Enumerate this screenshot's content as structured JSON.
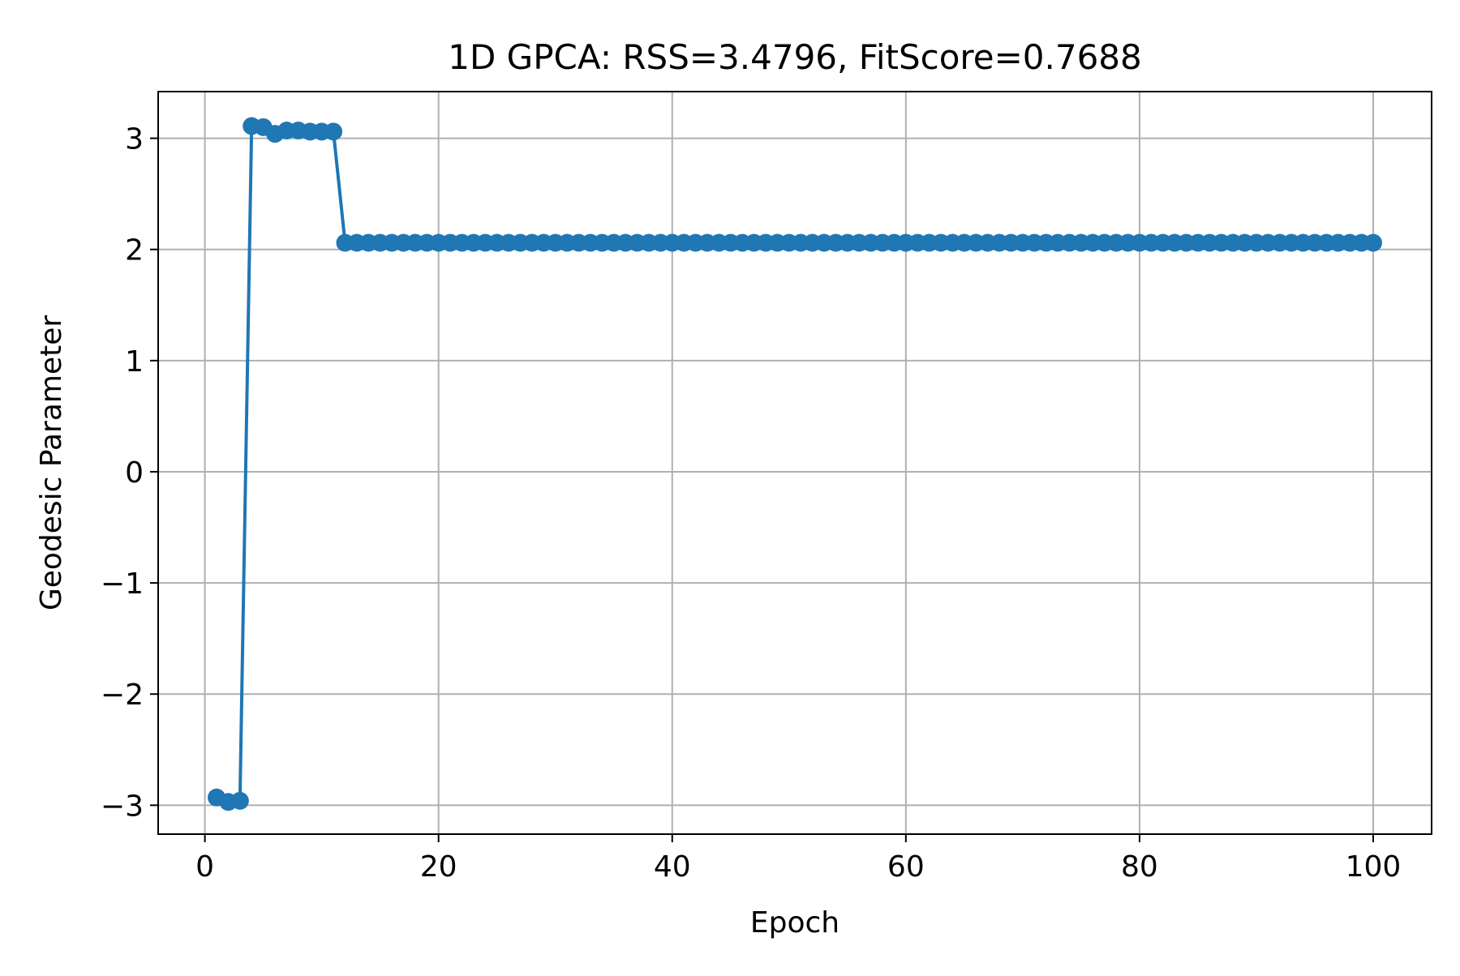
{
  "chart_data": {
    "type": "line",
    "title": "1D GPCA: RSS=3.4796, FitScore=0.7688",
    "xlabel": "Epoch",
    "ylabel": "Geodesic Parameter",
    "xlim": [
      -4,
      105
    ],
    "ylim": [
      -3.26,
      3.42
    ],
    "xticks": [
      0,
      20,
      40,
      60,
      80,
      100
    ],
    "yticks": [
      -3,
      -2,
      -1,
      0,
      1,
      2,
      3
    ],
    "xtick_labels": [
      "0",
      "20",
      "40",
      "60",
      "80",
      "100"
    ],
    "ytick_labels": [
      "−3",
      "−2",
      "−1",
      "0",
      "1",
      "2",
      "3"
    ],
    "grid": true,
    "colors": {
      "series": "#1f77b4",
      "grid": "#b0b0b0",
      "axes": "#000000"
    },
    "series": [
      {
        "marker": "circle",
        "x": [
          1,
          2,
          3,
          4,
          5,
          6,
          7,
          8,
          9,
          10,
          11,
          12,
          13,
          14,
          15,
          16,
          17,
          18,
          19,
          20,
          21,
          22,
          23,
          24,
          25,
          26,
          27,
          28,
          29,
          30,
          31,
          32,
          33,
          34,
          35,
          36,
          37,
          38,
          39,
          40,
          41,
          42,
          43,
          44,
          45,
          46,
          47,
          48,
          49,
          50,
          51,
          52,
          53,
          54,
          55,
          56,
          57,
          58,
          59,
          60,
          61,
          62,
          63,
          64,
          65,
          66,
          67,
          68,
          69,
          70,
          71,
          72,
          73,
          74,
          75,
          76,
          77,
          78,
          79,
          80,
          81,
          82,
          83,
          84,
          85,
          86,
          87,
          88,
          89,
          90,
          91,
          92,
          93,
          94,
          95,
          96,
          97,
          98,
          99,
          100
        ],
        "y": [
          -2.93,
          -2.97,
          -2.96,
          3.11,
          3.1,
          3.04,
          3.07,
          3.07,
          3.06,
          3.06,
          3.06,
          2.06,
          2.06,
          2.06,
          2.06,
          2.06,
          2.06,
          2.06,
          2.06,
          2.06,
          2.06,
          2.06,
          2.06,
          2.06,
          2.06,
          2.06,
          2.06,
          2.06,
          2.06,
          2.06,
          2.06,
          2.06,
          2.06,
          2.06,
          2.06,
          2.06,
          2.06,
          2.06,
          2.06,
          2.06,
          2.06,
          2.06,
          2.06,
          2.06,
          2.06,
          2.06,
          2.06,
          2.06,
          2.06,
          2.06,
          2.06,
          2.06,
          2.06,
          2.06,
          2.06,
          2.06,
          2.06,
          2.06,
          2.06,
          2.06,
          2.06,
          2.06,
          2.06,
          2.06,
          2.06,
          2.06,
          2.06,
          2.06,
          2.06,
          2.06,
          2.06,
          2.06,
          2.06,
          2.06,
          2.06,
          2.06,
          2.06,
          2.06,
          2.06,
          2.06,
          2.06,
          2.06,
          2.06,
          2.06,
          2.06,
          2.06,
          2.06,
          2.06,
          2.06,
          2.06,
          2.06,
          2.06,
          2.06,
          2.06,
          2.06,
          2.06,
          2.06,
          2.06,
          2.06,
          2.06
        ]
      }
    ]
  }
}
